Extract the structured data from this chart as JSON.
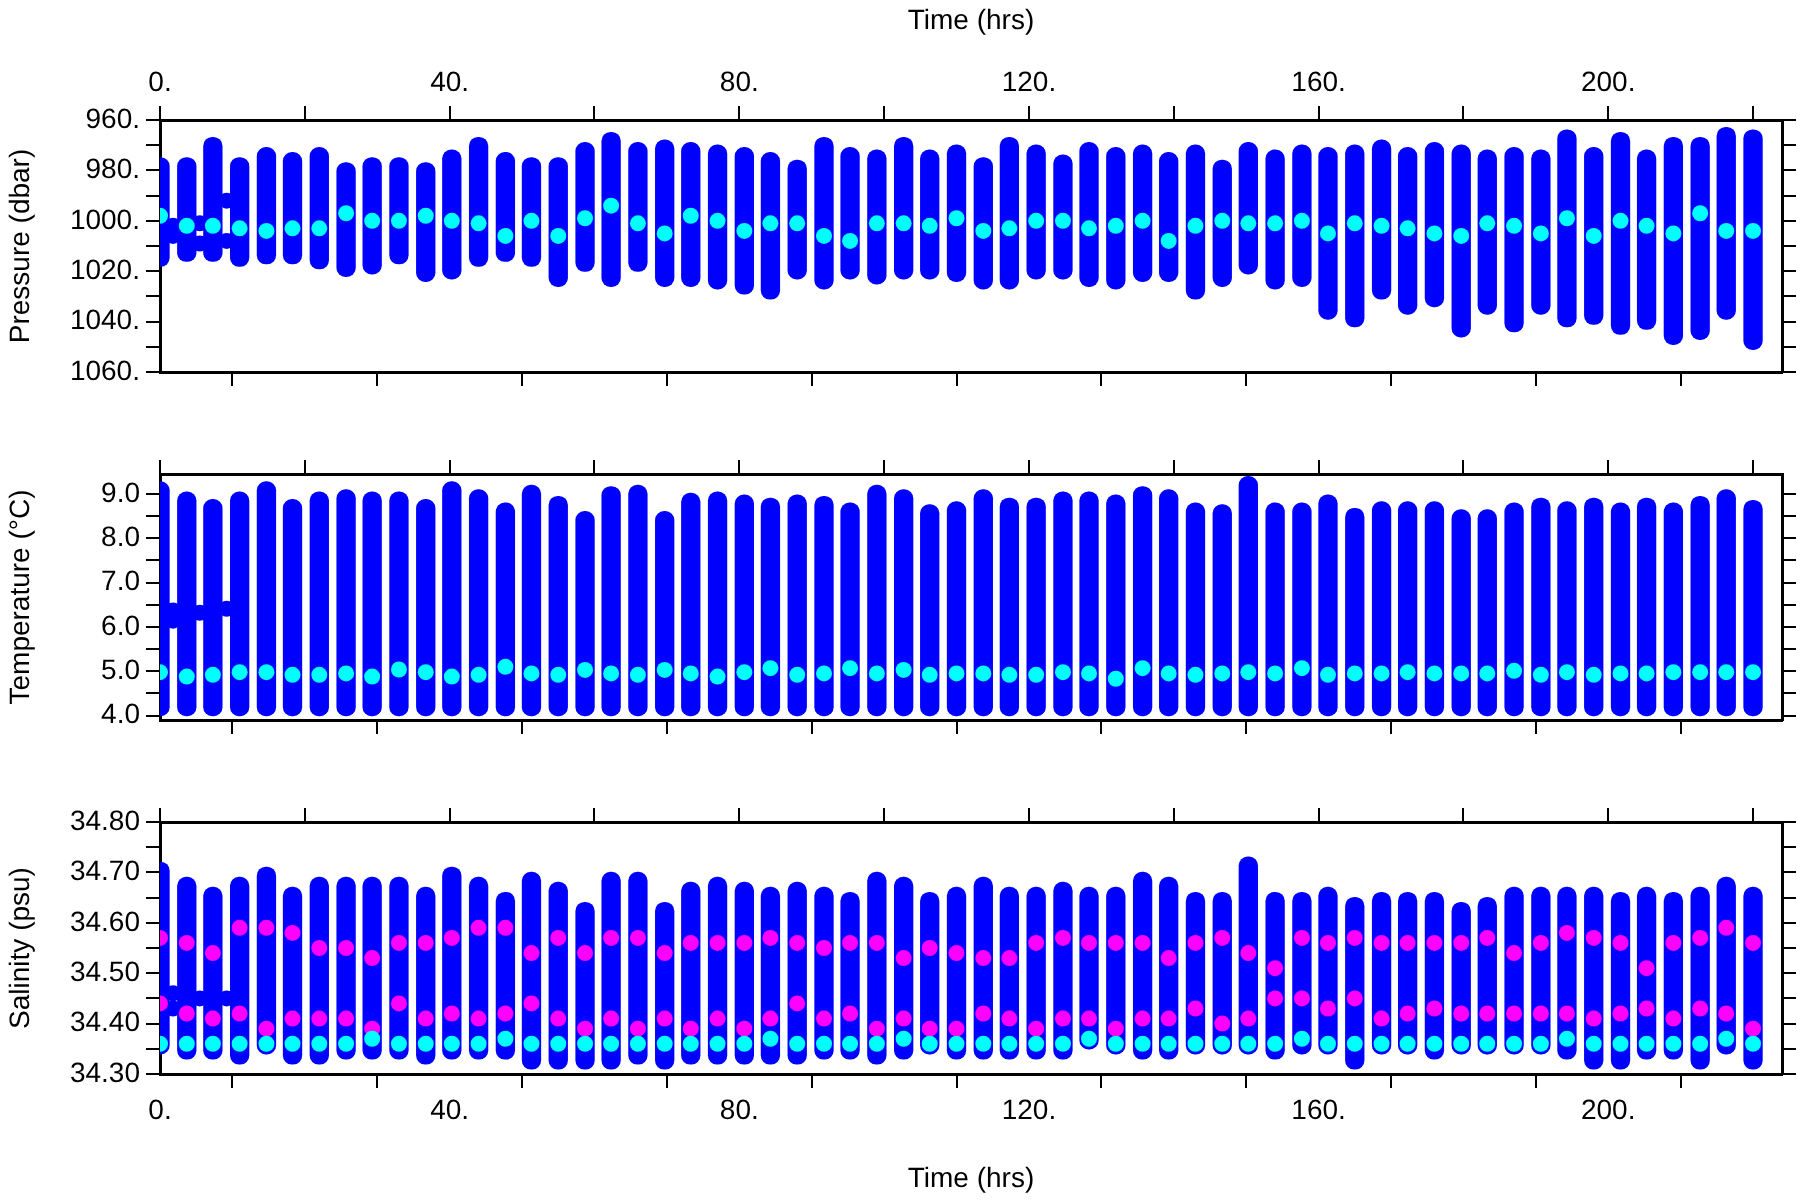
{
  "chart_data": [
    {
      "type": "scatter",
      "ylabel": "Pressure (dbar)",
      "x2label": "Time (hrs)",
      "marker": "circle",
      "grid": false,
      "tick_labels": "y",
      "xlim": [
        0,
        224
      ],
      "xticks": [
        0,
        20,
        40,
        60,
        80,
        100,
        120,
        140,
        160,
        180,
        200,
        220
      ],
      "x2lim": [
        0,
        224
      ],
      "x2ticks": [
        {
          "value": 0,
          "label": "0."
        },
        {
          "value": 20,
          "label": null
        },
        {
          "value": 40,
          "label": "40."
        },
        {
          "value": 60,
          "label": null
        },
        {
          "value": 80,
          "label": "80."
        },
        {
          "value": 100,
          "label": null
        },
        {
          "value": 120,
          "label": "120."
        },
        {
          "value": 140,
          "label": null
        },
        {
          "value": 160,
          "label": "160."
        },
        {
          "value": 180,
          "label": null
        },
        {
          "value": 200,
          "label": "200."
        },
        {
          "value": 220,
          "label": null
        }
      ],
      "ylim": [
        1060,
        960
      ],
      "yticks": [
        {
          "value": 960,
          "label": "960."
        },
        {
          "value": 970,
          "label": null
        },
        {
          "value": 980,
          "label": "980."
        },
        {
          "value": 990,
          "label": null
        },
        {
          "value": 1000,
          "label": "1000."
        },
        {
          "value": 1010,
          "label": null
        },
        {
          "value": 1020,
          "label": "1020."
        },
        {
          "value": 1030,
          "label": null
        },
        {
          "value": 1040,
          "label": "1040."
        },
        {
          "value": 1050,
          "label": null
        },
        {
          "value": 1060,
          "label": "1060."
        }
      ],
      "x": [
        0,
        3.7,
        7.3,
        11.0,
        14.7,
        18.3,
        22.0,
        25.7,
        29.3,
        33.0,
        36.7,
        40.3,
        44.0,
        47.7,
        51.3,
        55.0,
        58.7,
        62.3,
        66.0,
        69.7,
        73.3,
        77.0,
        80.7,
        84.3,
        88.0,
        91.7,
        95.3,
        99.0,
        102.7,
        106.3,
        110.0,
        113.7,
        117.3,
        121.0,
        124.7,
        128.3,
        132.0,
        135.7,
        139.3,
        143.0,
        146.7,
        150.3,
        154.0,
        157.7,
        161.3,
        165.0,
        168.7,
        172.3,
        176.0,
        179.7,
        183.3,
        187.0,
        190.7,
        194.3,
        198.0,
        201.7,
        205.3,
        209.0,
        212.7,
        216.3,
        220.0
      ],
      "series": [
        {
          "type": "bar",
          "color": "#0000ff",
          "base": [
            975,
            975,
            967,
            975,
            971,
            973,
            971,
            977,
            975,
            975,
            977,
            972,
            967,
            973,
            975,
            975,
            969,
            965,
            969,
            968,
            969,
            970,
            971,
            973,
            976,
            967,
            971,
            972,
            967,
            972,
            970,
            975,
            967,
            970,
            974,
            969,
            971,
            970,
            973,
            970,
            976,
            969,
            972,
            970,
            971,
            970,
            968,
            971,
            969,
            970,
            972,
            971,
            972,
            964,
            971,
            965,
            972,
            967,
            967,
            963,
            964
          ],
          "values": [
            43,
            41,
            49,
            43,
            46,
            44,
            48,
            45,
            46,
            42,
            47,
            51,
            51,
            43,
            43,
            51,
            51,
            61,
            51,
            58,
            57,
            57,
            58,
            58,
            47,
            60,
            52,
            53,
            56,
            51,
            54,
            52,
            60,
            53,
            49,
            57,
            56,
            54,
            51,
            61,
            50,
            52,
            55,
            56,
            68,
            72,
            63,
            66,
            65,
            76,
            65,
            73,
            65,
            78,
            70,
            80,
            71,
            82,
            80,
            76,
            87
          ]
        },
        {
          "type": "scatter",
          "color": "#0000ff",
          "x": [
            1.8,
            1.8,
            5.5,
            5.5,
            9.2,
            9.2
          ],
          "values": [
            1002,
            1006,
            1009,
            1001,
            1008,
            992
          ]
        },
        {
          "type": "scatter",
          "color": "#00ffff",
          "values": [
            998,
            1002,
            1002,
            1003,
            1004,
            1003,
            1003,
            997,
            1000,
            1000,
            998,
            1000,
            1001,
            1006,
            1000,
            1006,
            999,
            994,
            1001,
            1005,
            998,
            1000,
            1004,
            1001,
            1001,
            1006,
            1008,
            1001,
            1001,
            1002,
            999,
            1004,
            1003,
            1000,
            1000,
            1003,
            1002,
            1000,
            1008,
            1002,
            1000,
            1001,
            1001,
            1000,
            1005,
            1001,
            1002,
            1003,
            1005,
            1006,
            1001,
            1002,
            1005,
            999,
            1006,
            1000,
            1002,
            1005,
            997,
            1004,
            1004
          ]
        }
      ]
    },
    {
      "type": "scatter",
      "ylabel": "Temperature (°C)",
      "marker": "circle",
      "grid": false,
      "tick_labels": "y",
      "xlim": [
        0,
        224
      ],
      "xticks": [
        0,
        20,
        40,
        60,
        80,
        100,
        120,
        140,
        160,
        180,
        200,
        220
      ],
      "ylim": [
        3.9,
        9.45
      ],
      "yticks": [
        {
          "value": 4,
          "label": "4.0"
        },
        {
          "value": 4.5,
          "label": null
        },
        {
          "value": 5,
          "label": "5.0"
        },
        {
          "value": 5.5,
          "label": null
        },
        {
          "value": 6,
          "label": "6.0"
        },
        {
          "value": 6.5,
          "label": null
        },
        {
          "value": 7,
          "label": "7.0"
        },
        {
          "value": 7.5,
          "label": null
        },
        {
          "value": 8,
          "label": "8.0"
        },
        {
          "value": 8.5,
          "label": null
        },
        {
          "value": 9,
          "label": "9.0"
        }
      ],
      "x": [
        0,
        3.7,
        7.3,
        11.0,
        14.7,
        18.3,
        22.0,
        25.7,
        29.3,
        33.0,
        36.7,
        40.3,
        44.0,
        47.7,
        51.3,
        55.0,
        58.7,
        62.3,
        66.0,
        69.7,
        73.3,
        77.0,
        80.7,
        84.3,
        88.0,
        91.7,
        95.3,
        99.0,
        102.7,
        106.3,
        110.0,
        113.7,
        117.3,
        121.0,
        124.7,
        128.3,
        132.0,
        135.7,
        139.3,
        143.0,
        146.7,
        150.3,
        154.0,
        157.7,
        161.3,
        165.0,
        168.7,
        172.3,
        176.0,
        179.7,
        183.3,
        187.0,
        190.7,
        194.3,
        198.0,
        201.7,
        205.3,
        209.0,
        212.7,
        216.3,
        220.0
      ],
      "series": [
        {
          "type": "bar",
          "color": "#0000ff",
          "base": [
            4,
            4,
            4,
            4,
            4,
            4,
            4,
            4,
            4,
            4,
            4,
            4,
            4,
            4,
            4,
            4,
            4,
            4,
            4,
            4,
            4,
            4,
            4,
            4,
            4,
            4,
            4,
            4,
            4,
            4,
            4,
            4,
            4,
            4,
            4,
            4,
            4,
            4,
            4,
            4,
            4,
            4,
            4,
            4,
            4,
            4,
            4,
            4,
            4,
            4,
            4,
            4,
            4,
            4,
            4,
            4,
            4,
            4,
            4,
            4,
            4
          ],
          "values": [
            5.27,
            5.04,
            4.87,
            5.04,
            5.27,
            4.87,
            5.04,
            5.09,
            5.04,
            5.04,
            4.87,
            5.27,
            5.09,
            4.79,
            5.19,
            4.94,
            4.6,
            5.16,
            5.19,
            4.6,
            5.01,
            5.04,
            4.97,
            4.9,
            4.97,
            4.94,
            4.79,
            5.19,
            5.09,
            4.75,
            4.82,
            5.09,
            4.9,
            4.9,
            5.04,
            5.04,
            4.97,
            5.16,
            5.09,
            4.79,
            4.75,
            5.39,
            4.79,
            4.79,
            4.97,
            4.67,
            4.82,
            4.82,
            4.82,
            4.64,
            4.64,
            4.79,
            4.9,
            4.82,
            4.9,
            4.79,
            4.9,
            4.79,
            4.94,
            5.09,
            4.85
          ]
        },
        {
          "type": "scatter",
          "color": "#0000ff",
          "x": [
            1.8,
            1.8,
            5.5,
            9.2
          ],
          "values": [
            6.14,
            6.37,
            6.32,
            6.41
          ]
        },
        {
          "type": "scatter",
          "color": "#00ffff",
          "values": [
            4.98,
            4.88,
            4.92,
            4.98,
            4.98,
            4.92,
            4.92,
            4.95,
            4.88,
            5.04,
            4.98,
            4.88,
            4.92,
            5.1,
            4.95,
            4.92,
            5.03,
            4.95,
            4.92,
            5.03,
            4.95,
            4.88,
            4.98,
            5.07,
            4.92,
            4.95,
            5.07,
            4.95,
            5.03,
            4.92,
            4.95,
            4.95,
            4.92,
            4.92,
            4.98,
            4.95,
            4.83,
            5.07,
            4.95,
            4.92,
            4.95,
            4.98,
            4.95,
            5.07,
            4.92,
            4.95,
            4.95,
            4.98,
            4.95,
            4.95,
            4.95,
            5.01,
            4.92,
            4.98,
            4.92,
            4.95,
            4.95,
            4.98,
            4.98,
            4.98,
            4.98
          ]
        }
      ]
    },
    {
      "type": "scatter",
      "ylabel": "Salinity (psu)",
      "xlabel": "Time (hrs)",
      "marker": "circle",
      "grid": false,
      "xlim": [
        0,
        224
      ],
      "xticks": [
        {
          "value": 0,
          "label": "0."
        },
        {
          "value": 20,
          "label": null
        },
        {
          "value": 40,
          "label": "40."
        },
        {
          "value": 60,
          "label": null
        },
        {
          "value": 80,
          "label": "80."
        },
        {
          "value": 100,
          "label": null
        },
        {
          "value": 120,
          "label": "120."
        },
        {
          "value": 140,
          "label": null
        },
        {
          "value": 160,
          "label": "160."
        },
        {
          "value": 180,
          "label": null
        },
        {
          "value": 200,
          "label": "200."
        },
        {
          "value": 220,
          "label": null
        }
      ],
      "ylim": [
        34.3,
        34.8
      ],
      "yticks": [
        {
          "value": 34.3,
          "label": "34.30"
        },
        {
          "value": 34.35,
          "label": null
        },
        {
          "value": 34.4,
          "label": "34.40"
        },
        {
          "value": 34.45,
          "label": null
        },
        {
          "value": 34.5,
          "label": "34.50"
        },
        {
          "value": 34.55,
          "label": null
        },
        {
          "value": 34.6,
          "label": "34.60"
        },
        {
          "value": 34.65,
          "label": null
        },
        {
          "value": 34.7,
          "label": "34.70"
        },
        {
          "value": 34.75,
          "label": null
        },
        {
          "value": 34.8,
          "label": "34.80"
        }
      ],
      "x": [
        0,
        3.7,
        7.3,
        11.0,
        14.7,
        18.3,
        22.0,
        25.7,
        29.3,
        33.0,
        36.7,
        40.3,
        44.0,
        47.7,
        51.3,
        55.0,
        58.7,
        62.3,
        66.0,
        69.7,
        73.3,
        77.0,
        80.7,
        84.3,
        88.0,
        91.7,
        95.3,
        99.0,
        102.7,
        106.3,
        110.0,
        113.7,
        117.3,
        121.0,
        124.7,
        128.3,
        132.0,
        135.7,
        139.3,
        143.0,
        146.7,
        150.3,
        154.0,
        157.7,
        161.3,
        165.0,
        168.7,
        172.3,
        176.0,
        179.7,
        183.3,
        187.0,
        190.7,
        194.3,
        198.0,
        201.7,
        205.3,
        209.0,
        212.7,
        216.3,
        220.0
      ],
      "series": [
        {
          "type": "bar",
          "color": "#0000ff",
          "base": [
            34.34,
            34.33,
            34.33,
            34.32,
            34.34,
            34.32,
            34.32,
            34.33,
            34.33,
            34.33,
            34.32,
            34.33,
            34.33,
            34.33,
            34.31,
            34.31,
            34.31,
            34.31,
            34.32,
            34.31,
            34.32,
            34.32,
            34.32,
            34.32,
            34.32,
            34.33,
            34.33,
            34.32,
            34.33,
            34.34,
            34.33,
            34.33,
            34.33,
            34.33,
            34.33,
            34.35,
            34.34,
            34.33,
            34.33,
            34.34,
            34.34,
            34.34,
            34.33,
            34.34,
            34.34,
            34.31,
            34.34,
            34.34,
            34.33,
            34.34,
            34.34,
            34.34,
            34.34,
            34.33,
            34.31,
            34.31,
            34.33,
            34.33,
            34.31,
            34.34,
            34.31
          ],
          "values": [
            0.38,
            0.36,
            0.34,
            0.37,
            0.37,
            0.35,
            0.37,
            0.36,
            0.36,
            0.36,
            0.35,
            0.38,
            0.36,
            0.33,
            0.39,
            0.37,
            0.33,
            0.39,
            0.38,
            0.33,
            0.36,
            0.37,
            0.36,
            0.35,
            0.36,
            0.34,
            0.33,
            0.38,
            0.36,
            0.32,
            0.34,
            0.36,
            0.34,
            0.34,
            0.35,
            0.32,
            0.33,
            0.37,
            0.36,
            0.32,
            0.32,
            0.39,
            0.33,
            0.32,
            0.33,
            0.34,
            0.32,
            0.32,
            0.33,
            0.3,
            0.31,
            0.33,
            0.33,
            0.34,
            0.36,
            0.35,
            0.34,
            0.33,
            0.36,
            0.35,
            0.36
          ]
        },
        {
          "type": "scatter",
          "color": "#0000ff",
          "x": [
            1.8,
            1.8,
            5.5,
            9.2
          ],
          "values": [
            34.43,
            34.46,
            34.45,
            34.45
          ]
        },
        {
          "type": "scatter",
          "color": "#ff00ff",
          "x": [
            0,
            3.7,
            7.3,
            11.0,
            14.7,
            18.3,
            22.0,
            25.7,
            29.3,
            33.0,
            36.7,
            40.3,
            44.0,
            47.7,
            51.3,
            55.0,
            58.7,
            62.3,
            66.0,
            69.7,
            73.3,
            77.0,
            80.7,
            84.3,
            88.0,
            91.7,
            95.3,
            99.0,
            102.7,
            106.3,
            110.0,
            113.7,
            117.3,
            121.0,
            124.7,
            128.3,
            132.0,
            135.7,
            139.3,
            143.0,
            146.7,
            150.3,
            154.0,
            157.7,
            161.3,
            165.0,
            168.7,
            172.3,
            176.0,
            179.7,
            183.3,
            187.0,
            190.7,
            194.3,
            198.0,
            201.7,
            205.3,
            209.0,
            212.7,
            216.3,
            220.0,
            0,
            3.7,
            7.3,
            11.0,
            14.7,
            18.3,
            22.0,
            25.7,
            29.3,
            33.0,
            36.7,
            40.3,
            44.0,
            47.7,
            51.3,
            55.0,
            58.7,
            62.3,
            66.0,
            69.7,
            73.3,
            77.0,
            80.7,
            84.3,
            88.0,
            91.7,
            95.3,
            99.0,
            102.7,
            106.3,
            110.0,
            113.7,
            117.3,
            121.0,
            124.7,
            128.3,
            132.0,
            135.7,
            139.3,
            143.0,
            146.7,
            150.3,
            154.0,
            157.7,
            161.3,
            165.0,
            168.7,
            172.3,
            176.0,
            179.7,
            183.3,
            187.0,
            190.7,
            194.3,
            198.0,
            201.7,
            205.3,
            209.0,
            212.7,
            216.3,
            220.0
          ],
          "values": [
            34.57,
            34.56,
            34.54,
            34.59,
            34.59,
            34.58,
            34.55,
            34.55,
            34.53,
            34.56,
            34.56,
            34.57,
            34.59,
            34.59,
            34.54,
            34.57,
            34.54,
            34.57,
            34.57,
            34.54,
            34.56,
            34.56,
            34.56,
            34.57,
            34.56,
            34.55,
            34.56,
            34.56,
            34.53,
            34.55,
            34.54,
            34.53,
            34.53,
            34.56,
            34.57,
            34.56,
            34.56,
            34.56,
            34.53,
            34.56,
            34.57,
            34.54,
            34.51,
            34.57,
            34.56,
            34.57,
            34.56,
            34.56,
            34.56,
            34.56,
            34.57,
            34.54,
            34.56,
            34.58,
            34.57,
            34.56,
            34.51,
            34.56,
            34.57,
            34.59,
            34.56,
            34.44,
            34.42,
            34.41,
            34.42,
            34.39,
            34.41,
            34.41,
            34.41,
            34.39,
            34.44,
            34.41,
            34.42,
            34.41,
            34.42,
            34.44,
            34.41,
            34.39,
            34.41,
            34.39,
            34.41,
            34.39,
            34.41,
            34.39,
            34.41,
            34.44,
            34.41,
            34.42,
            34.39,
            34.41,
            34.39,
            34.39,
            34.42,
            34.41,
            34.39,
            34.41,
            34.41,
            34.39,
            34.41,
            34.41,
            34.43,
            34.4,
            34.41,
            34.45,
            34.45,
            34.43,
            34.45,
            34.41,
            34.42,
            34.43,
            34.42,
            34.42,
            34.42,
            34.42,
            34.42,
            34.41,
            34.42,
            34.43,
            34.41,
            34.43,
            34.42,
            34.39
          ]
        },
        {
          "type": "scatter",
          "color": "#00ffff",
          "values": [
            34.36,
            34.36,
            34.36,
            34.36,
            34.36,
            34.36,
            34.36,
            34.36,
            34.37,
            34.36,
            34.36,
            34.36,
            34.36,
            34.37,
            34.36,
            34.36,
            34.36,
            34.36,
            34.36,
            34.36,
            34.36,
            34.36,
            34.36,
            34.37,
            34.36,
            34.36,
            34.36,
            34.36,
            34.37,
            34.36,
            34.36,
            34.36,
            34.36,
            34.36,
            34.36,
            34.37,
            34.36,
            34.36,
            34.36,
            34.36,
            34.36,
            34.36,
            34.36,
            34.37,
            34.36,
            34.36,
            34.36,
            34.36,
            34.36,
            34.36,
            34.36,
            34.36,
            34.36,
            34.37,
            34.36,
            34.36,
            34.36,
            34.36,
            34.36,
            34.37,
            34.36
          ]
        }
      ]
    }
  ]
}
